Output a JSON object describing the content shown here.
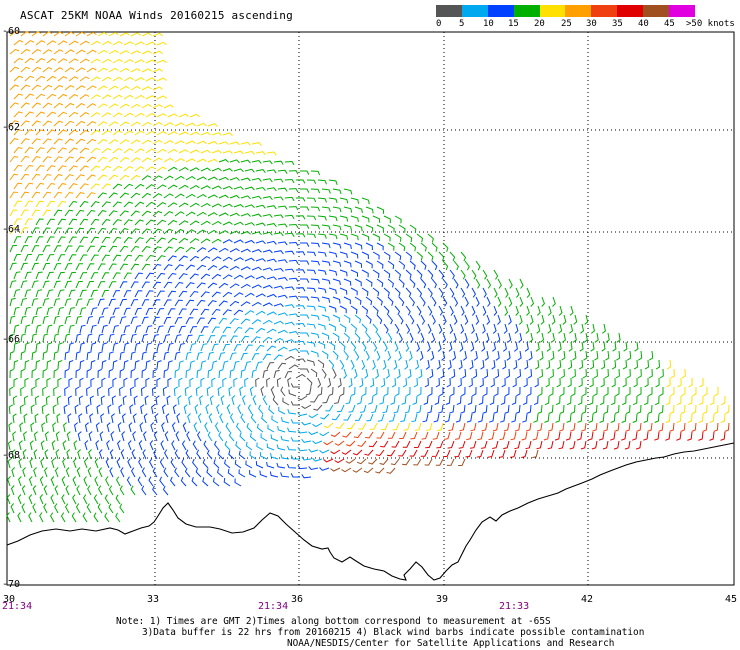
{
  "title": "ASCAT 25KM NOAA Winds 20160215 ascending",
  "scale": {
    "labels": [
      "0",
      "5",
      "10",
      "15",
      "20",
      "25",
      "30",
      "35",
      "40",
      "45",
      ">50 knots"
    ],
    "colors": [
      "#555555",
      "#00a8f0",
      "#0040ff",
      "#00b000",
      "#ffe000",
      "#ffa000",
      "#f04010",
      "#e00000",
      "#a05020",
      "#e000e0",
      "#6000a0"
    ]
  },
  "lat_labels": [
    "-60",
    "-62",
    "-64",
    "-66",
    "-68",
    "-70"
  ],
  "lon_labels": [
    "30",
    "33",
    "36",
    "39",
    "42",
    "45"
  ],
  "time_labels": [
    "21:34",
    "21:34",
    "21:33"
  ],
  "notes": [
    "Note: 1) Times are GMT 2)Times along bottom correspond to measurement at -65S",
    "3)Data buffer is 22 hrs from 20160215 4) Black wind barbs indicate possible contamination",
    "NOAA/NESDIS/Center for Satellite Applications and Research"
  ]
}
